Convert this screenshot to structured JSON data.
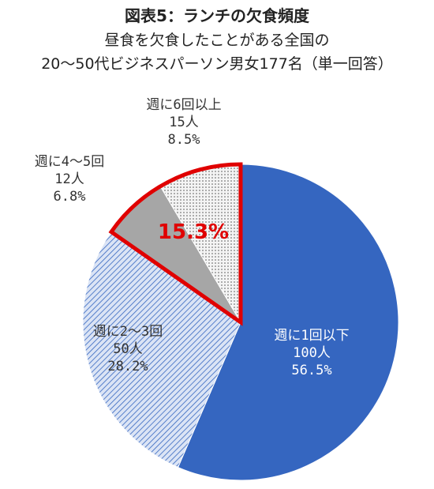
{
  "title": "図表5：ランチの欠食頻度",
  "subtitle_line1": "昼食を欠食したことがある全国の",
  "subtitle_line2": "20～50代ビジネスパーソン男女177名（単一回答）",
  "chart_data": {
    "type": "pie",
    "total": 177,
    "slices": [
      {
        "label": "週に1回以下",
        "count": "100人",
        "percent": "56.5%",
        "value": 56.5,
        "color": "#3566c0",
        "pattern": "solid"
      },
      {
        "label": "週に2～3回",
        "count": "50人",
        "percent": "28.2%",
        "value": 28.2,
        "color": "#c9d7ef",
        "pattern": "diagonal-hatch"
      },
      {
        "label": "週に4～5回",
        "count": "12人",
        "percent": "6.8%",
        "value": 6.8,
        "color": "#a6a6a6",
        "pattern": "solid"
      },
      {
        "label": "週に6回以上",
        "count": "15人",
        "percent": "8.5%",
        "value": 8.5,
        "color": "#eeeeee",
        "pattern": "dotted"
      }
    ],
    "highlight": {
      "label": "15.3%",
      "color": "#e00000",
      "slices": [
        "週に4～5回",
        "週に6回以上"
      ]
    }
  }
}
